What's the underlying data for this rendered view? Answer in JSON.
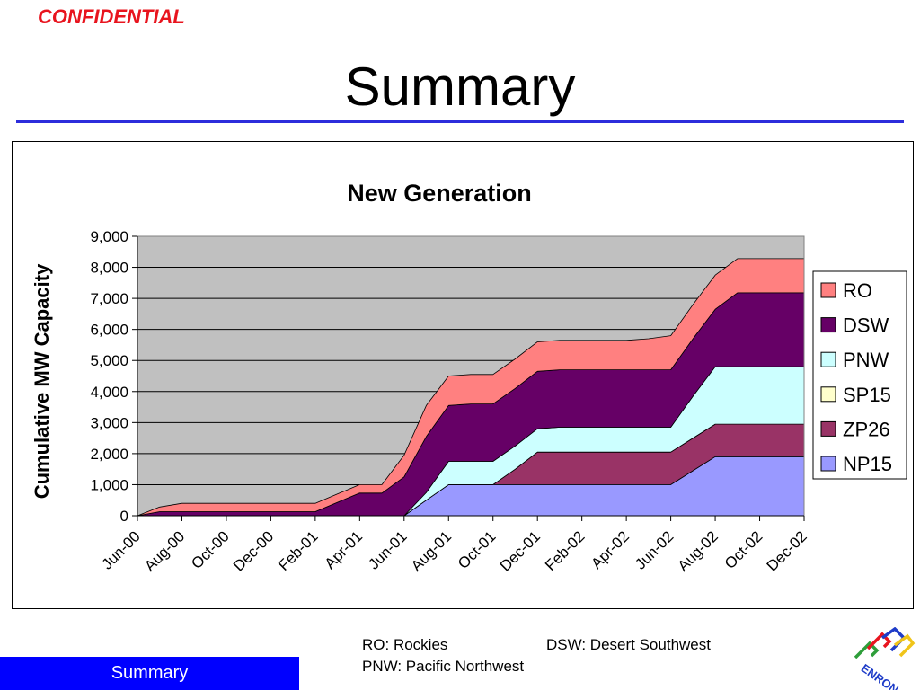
{
  "header": {
    "confidential": "CONFIDENTIAL",
    "title": "Summary"
  },
  "chart_data": {
    "type": "area",
    "stacked": true,
    "title": "New Generation",
    "xlabel": "",
    "ylabel": "Cumulative MW Capacity",
    "ylim": [
      0,
      9000
    ],
    "yticks": [
      "0",
      "1,000",
      "2,000",
      "3,000",
      "4,000",
      "5,000",
      "6,000",
      "7,000",
      "8,000",
      "9,000"
    ],
    "xtick_labels": [
      "Jun-00",
      "Aug-00",
      "Oct-00",
      "Dec-00",
      "Feb-01",
      "Apr-01",
      "Jun-01",
      "Aug-01",
      "Oct-01",
      "Dec-01",
      "Feb-02",
      "Apr-02",
      "Jun-02",
      "Aug-02",
      "Oct-02",
      "Dec-02"
    ],
    "x": [
      "Jun-00",
      "Jul-00",
      "Aug-00",
      "Sep-00",
      "Oct-00",
      "Nov-00",
      "Dec-00",
      "Jan-01",
      "Feb-01",
      "Mar-01",
      "Apr-01",
      "May-01",
      "Jun-01",
      "Jul-01",
      "Aug-01",
      "Sep-01",
      "Oct-01",
      "Nov-01",
      "Dec-01",
      "Jan-02",
      "Feb-02",
      "Mar-02",
      "Apr-02",
      "May-02",
      "Jun-02",
      "Jul-02",
      "Aug-02",
      "Sep-02",
      "Oct-02",
      "Nov-02",
      "Dec-02"
    ],
    "grid": true,
    "legend_position": "right",
    "plot_background": "#c0c0c0",
    "series": [
      {
        "name": "NP15",
        "color": "#9999ff",
        "values": [
          0,
          0,
          0,
          0,
          0,
          0,
          0,
          0,
          0,
          0,
          0,
          0,
          0,
          500,
          1000,
          1000,
          1000,
          1000,
          1000,
          1000,
          1000,
          1000,
          1000,
          1000,
          1000,
          1450,
          1900,
          1900,
          1900,
          1900,
          1900
        ]
      },
      {
        "name": "ZP26",
        "color": "#993366",
        "values": [
          0,
          0,
          0,
          0,
          0,
          0,
          0,
          0,
          0,
          0,
          0,
          0,
          0,
          0,
          0,
          0,
          0,
          500,
          1050,
          1050,
          1050,
          1050,
          1050,
          1050,
          1050,
          1050,
          1050,
          1050,
          1050,
          1050,
          1050
        ]
      },
      {
        "name": "SP15",
        "color": "#ffffcc",
        "values": [
          0,
          0,
          0,
          0,
          0,
          0,
          0,
          0,
          0,
          0,
          0,
          0,
          0,
          0,
          0,
          0,
          0,
          0,
          0,
          0,
          0,
          0,
          0,
          0,
          0,
          0,
          0,
          0,
          0,
          0,
          0
        ]
      },
      {
        "name": "PNW",
        "color": "#ccffff",
        "values": [
          0,
          0,
          0,
          0,
          0,
          0,
          0,
          0,
          0,
          0,
          0,
          0,
          0,
          250,
          750,
          750,
          750,
          750,
          750,
          800,
          800,
          800,
          800,
          800,
          800,
          1350,
          1850,
          1850,
          1850,
          1850,
          1850
        ]
      },
      {
        "name": "DSW",
        "color": "#660066",
        "values": [
          0,
          130,
          130,
          130,
          130,
          130,
          130,
          130,
          130,
          430,
          730,
          730,
          1250,
          1800,
          1800,
          1850,
          1850,
          1850,
          1850,
          1850,
          1850,
          1850,
          1850,
          1850,
          1850,
          1850,
          1850,
          2380,
          2380,
          2380,
          2380
        ]
      },
      {
        "name": "RO",
        "color": "#ff8080",
        "values": [
          0,
          150,
          270,
          270,
          270,
          270,
          270,
          270,
          270,
          270,
          270,
          270,
          700,
          1000,
          950,
          950,
          950,
          950,
          950,
          950,
          950,
          950,
          950,
          1000,
          1100,
          1100,
          1100,
          1100,
          1100,
          1100,
          1100
        ]
      }
    ]
  },
  "footnotes": {
    "ro": "RO: Rockies",
    "dsw": "DSW: Desert Southwest",
    "pnw": "PNW: Pacific Northwest"
  },
  "footer": {
    "section": "Summary"
  },
  "logo": {
    "icon": "enron-logo-icon",
    "text": "ENRON"
  }
}
